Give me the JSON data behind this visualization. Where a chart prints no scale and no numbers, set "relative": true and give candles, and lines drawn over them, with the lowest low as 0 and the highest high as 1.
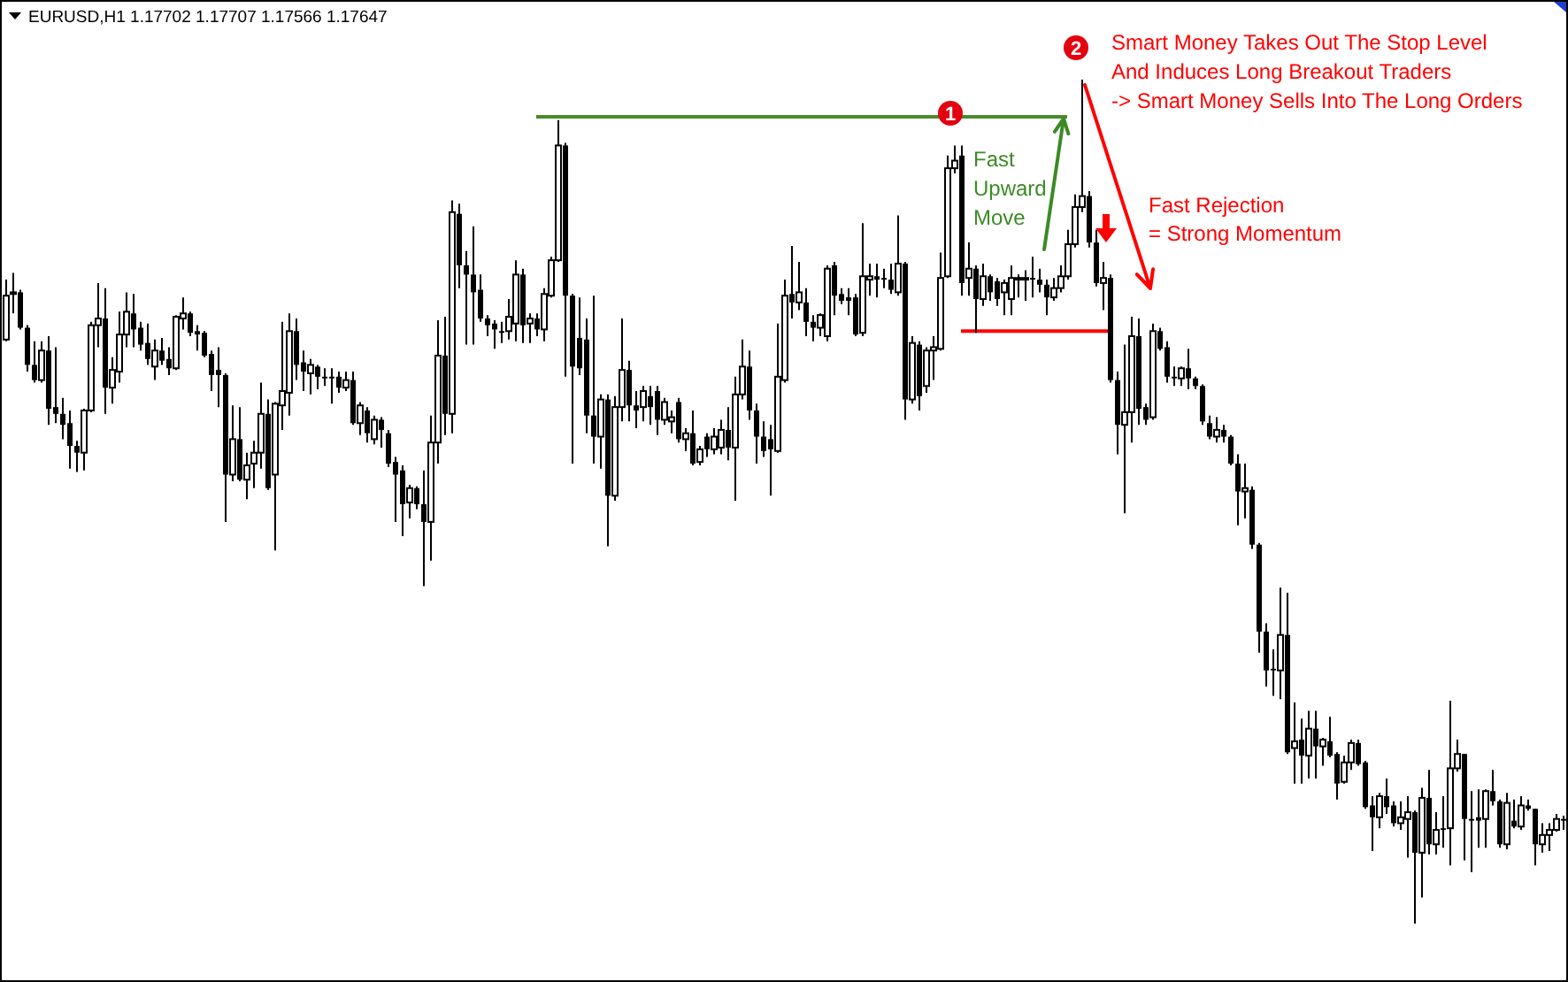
{
  "chart_data": {
    "type": "candlestick",
    "relative": true,
    "title": "EURUSD,H1 1.17702 1.17707 1.17566 1.17647",
    "categories": [
      null,
      null,
      null,
      null,
      null,
      null,
      null,
      null,
      null,
      null,
      null,
      null,
      null,
      null,
      null,
      null,
      null,
      null,
      null,
      null,
      null,
      null,
      null,
      null,
      null,
      null,
      null,
      null,
      null,
      null,
      null,
      null,
      null,
      null,
      null,
      null,
      null,
      null,
      null,
      null,
      null,
      null,
      null,
      null,
      null,
      null,
      null,
      null,
      null,
      null,
      null,
      null,
      null,
      null,
      null,
      null,
      null,
      null,
      null,
      null,
      null,
      null,
      null,
      null,
      null,
      null,
      null,
      null,
      null,
      null,
      null,
      null,
      null,
      null,
      null,
      null,
      null,
      null,
      null,
      null,
      null,
      null,
      null,
      null,
      null,
      null,
      null,
      null,
      null,
      null,
      null,
      null,
      null,
      null,
      null,
      null,
      null,
      null,
      null,
      null,
      null,
      null,
      null,
      null,
      null,
      null,
      null,
      null,
      null,
      null,
      null,
      null,
      null,
      null,
      null,
      null,
      null,
      null,
      null,
      null,
      null,
      null,
      null,
      null,
      null,
      null,
      null,
      null,
      null,
      null,
      null,
      null,
      null,
      null,
      null,
      null,
      null,
      null,
      null,
      null,
      null,
      null,
      null,
      null,
      null,
      null,
      null,
      null,
      null,
      null,
      null,
      null,
      null,
      null,
      null,
      null,
      null,
      null,
      null,
      null,
      null,
      null,
      null,
      null,
      null,
      null,
      null,
      null,
      null,
      null,
      null,
      null,
      null,
      null,
      null,
      null,
      null,
      null,
      null,
      null,
      null,
      null,
      null,
      null,
      null,
      null,
      null,
      null,
      null,
      null,
      null,
      null,
      null,
      null,
      null,
      null,
      null,
      null,
      null,
      null,
      null,
      null,
      null,
      null,
      null,
      null,
      null,
      null,
      null,
      null,
      null,
      null,
      null,
      null,
      null,
      null,
      null,
      null,
      null,
      null,
      null
    ],
    "ohlc": [
      [
        0.692,
        0.763,
        0.69,
        0.744
      ],
      [
        0.746,
        0.771,
        0.723,
        0.748
      ],
      [
        0.748,
        0.751,
        0.704,
        0.706
      ],
      [
        0.706,
        0.709,
        0.654,
        0.662
      ],
      [
        0.662,
        0.69,
        0.641,
        0.644
      ],
      [
        0.644,
        0.69,
        0.641,
        0.679
      ],
      [
        0.679,
        0.696,
        0.591,
        0.61
      ],
      [
        0.612,
        0.683,
        0.593,
        0.604
      ],
      [
        0.604,
        0.623,
        0.574,
        0.591
      ],
      [
        0.593,
        0.608,
        0.539,
        0.566
      ],
      [
        0.566,
        0.572,
        0.535,
        0.558
      ],
      [
        0.558,
        0.61,
        0.537,
        0.608
      ],
      [
        0.608,
        0.713,
        0.606,
        0.709
      ],
      [
        0.709,
        0.759,
        0.683,
        0.717
      ],
      [
        0.717,
        0.753,
        0.604,
        0.635
      ],
      [
        0.635,
        0.671,
        0.616,
        0.656
      ],
      [
        0.654,
        0.725,
        0.641,
        0.698
      ],
      [
        0.698,
        0.748,
        0.683,
        0.725
      ],
      [
        0.723,
        0.746,
        0.683,
        0.704
      ],
      [
        0.706,
        0.713,
        0.679,
        0.686
      ],
      [
        0.688,
        0.711,
        0.662,
        0.669
      ],
      [
        0.66,
        0.692,
        0.644,
        0.679
      ],
      [
        0.679,
        0.694,
        0.662,
        0.667
      ],
      [
        0.669,
        0.683,
        0.65,
        0.658
      ],
      [
        0.658,
        0.721,
        0.656,
        0.719
      ],
      [
        0.717,
        0.742,
        0.704,
        0.723
      ],
      [
        0.723,
        0.725,
        0.696,
        0.7
      ],
      [
        0.702,
        0.709,
        0.679,
        0.698
      ],
      [
        0.7,
        0.702,
        0.671,
        0.673
      ],
      [
        0.675,
        0.679,
        0.631,
        0.65
      ],
      [
        0.656,
        0.683,
        0.612,
        0.65
      ],
      [
        0.65,
        0.652,
        0.476,
        0.532
      ],
      [
        0.532,
        0.614,
        0.524,
        0.574
      ],
      [
        0.574,
        0.612,
        0.524,
        0.526
      ],
      [
        0.526,
        0.558,
        0.503,
        0.543
      ],
      [
        0.545,
        0.572,
        0.516,
        0.558
      ],
      [
        0.558,
        0.641,
        0.539,
        0.604
      ],
      [
        0.604,
        0.621,
        0.514,
        0.516
      ],
      [
        0.532,
        0.618,
        0.442,
        0.616
      ],
      [
        0.614,
        0.713,
        0.585,
        0.631
      ],
      [
        0.629,
        0.723,
        0.602,
        0.702
      ],
      [
        0.702,
        0.717,
        0.644,
        0.662
      ],
      [
        0.665,
        0.679,
        0.631,
        0.654
      ],
      [
        0.652,
        0.669,
        0.627,
        0.662
      ],
      [
        0.66,
        0.662,
        0.633,
        0.648
      ],
      [
        0.648,
        0.658,
        0.637,
        0.646
      ],
      [
        0.648,
        0.658,
        0.616,
        0.646
      ],
      [
        0.648,
        0.654,
        0.629,
        0.635
      ],
      [
        0.635,
        0.654,
        0.631,
        0.644
      ],
      [
        0.644,
        0.654,
        0.591,
        0.593
      ],
      [
        0.593,
        0.618,
        0.579,
        0.614
      ],
      [
        0.608,
        0.612,
        0.57,
        0.581
      ],
      [
        0.574,
        0.602,
        0.568,
        0.597
      ],
      [
        0.597,
        0.6,
        0.564,
        0.585
      ],
      [
        0.581,
        0.585,
        0.541,
        0.545
      ],
      [
        0.547,
        0.553,
        0.476,
        0.532
      ],
      [
        0.537,
        0.543,
        0.459,
        0.497
      ],
      [
        0.499,
        0.52,
        0.48,
        0.516
      ],
      [
        0.516,
        0.518,
        0.491,
        0.497
      ],
      [
        0.497,
        0.537,
        0.4,
        0.476
      ],
      [
        0.476,
        0.602,
        0.43,
        0.57
      ],
      [
        0.57,
        0.715,
        0.545,
        0.673
      ],
      [
        0.673,
        0.719,
        0.579,
        0.604
      ],
      [
        0.604,
        0.857,
        0.581,
        0.843
      ],
      [
        0.841,
        0.853,
        0.753,
        0.78
      ],
      [
        0.78,
        0.797,
        0.686,
        0.769
      ],
      [
        0.769,
        0.826,
        0.686,
        0.748
      ],
      [
        0.751,
        0.769,
        0.713,
        0.717
      ],
      [
        0.717,
        0.721,
        0.696,
        0.709
      ],
      [
        0.711,
        0.715,
        0.681,
        0.704
      ],
      [
        0.702,
        0.713,
        0.688,
        0.7
      ],
      [
        0.702,
        0.74,
        0.692,
        0.719
      ],
      [
        0.711,
        0.786,
        0.69,
        0.769
      ],
      [
        0.769,
        0.776,
        0.688,
        0.709
      ],
      [
        0.711,
        0.723,
        0.688,
        0.717
      ],
      [
        0.717,
        0.723,
        0.696,
        0.704
      ],
      [
        0.704,
        0.753,
        0.69,
        0.746
      ],
      [
        0.744,
        0.79,
        0.742,
        0.786
      ],
      [
        0.786,
        0.952,
        0.784,
        0.922
      ],
      [
        0.922,
        0.925,
        0.648,
        0.744
      ],
      [
        0.744,
        0.746,
        0.545,
        0.66
      ],
      [
        0.694,
        0.742,
        0.65,
        0.658
      ],
      [
        0.692,
        0.717,
        0.581,
        0.602
      ],
      [
        0.602,
        0.744,
        0.545,
        0.577
      ],
      [
        0.577,
        0.627,
        0.539,
        0.621
      ],
      [
        0.621,
        0.627,
        0.447,
        0.507
      ],
      [
        0.507,
        0.625,
        0.501,
        0.612
      ],
      [
        0.612,
        0.717,
        0.595,
        0.656
      ],
      [
        0.656,
        0.667,
        0.595,
        0.614
      ],
      [
        0.614,
        0.631,
        0.587,
        0.608
      ],
      [
        0.612,
        0.637,
        0.595,
        0.631
      ],
      [
        0.625,
        0.637,
        0.591,
        0.612
      ],
      [
        0.631,
        0.637,
        0.579,
        0.597
      ],
      [
        0.597,
        0.623,
        0.591,
        0.618
      ],
      [
        0.595,
        0.608,
        0.581,
        0.6
      ],
      [
        0.618,
        0.623,
        0.57,
        0.574
      ],
      [
        0.574,
        0.587,
        0.56,
        0.581
      ],
      [
        0.581,
        0.608,
        0.543,
        0.545
      ],
      [
        0.547,
        0.566,
        0.543,
        0.562
      ],
      [
        0.577,
        0.581,
        0.553,
        0.562
      ],
      [
        0.562,
        0.587,
        0.556,
        0.577
      ],
      [
        0.564,
        0.597,
        0.556,
        0.585
      ],
      [
        0.585,
        0.612,
        0.549,
        0.564
      ],
      [
        0.564,
        0.648,
        0.501,
        0.627
      ],
      [
        0.627,
        0.692,
        0.621,
        0.66
      ],
      [
        0.66,
        0.679,
        0.597,
        0.608
      ],
      [
        0.608,
        0.616,
        0.545,
        0.577
      ],
      [
        0.577,
        0.595,
        0.553,
        0.56
      ],
      [
        0.574,
        0.591,
        0.507,
        0.562
      ],
      [
        0.56,
        0.711,
        0.558,
        0.648
      ],
      [
        0.644,
        0.763,
        0.641,
        0.744
      ],
      [
        0.746,
        0.803,
        0.717,
        0.736
      ],
      [
        0.736,
        0.784,
        0.727,
        0.748
      ],
      [
        0.736,
        0.753,
        0.696,
        0.713
      ],
      [
        0.713,
        0.721,
        0.69,
        0.706
      ],
      [
        0.706,
        0.723,
        0.696,
        0.721
      ],
      [
        0.696,
        0.78,
        0.69,
        0.776
      ],
      [
        0.78,
        0.784,
        0.721,
        0.744
      ],
      [
        0.746,
        0.753,
        0.734,
        0.738
      ],
      [
        0.742,
        0.753,
        0.721,
        0.738
      ],
      [
        0.742,
        0.746,
        0.696,
        0.698
      ],
      [
        0.7,
        0.83,
        0.696,
        0.767
      ],
      [
        0.763,
        0.782,
        0.744,
        0.767
      ],
      [
        0.767,
        0.782,
        0.742,
        0.763
      ],
      [
        0.765,
        0.776,
        0.753,
        0.763
      ],
      [
        0.763,
        0.782,
        0.746,
        0.751
      ],
      [
        0.748,
        0.839,
        0.744,
        0.782
      ],
      [
        0.782,
        0.784,
        0.597,
        0.621
      ],
      [
        0.621,
        0.696,
        0.616,
        0.688
      ],
      [
        0.686,
        0.69,
        0.608,
        0.625
      ],
      [
        0.637,
        0.683,
        0.629,
        0.679
      ],
      [
        0.679,
        0.696,
        0.644,
        0.683
      ],
      [
        0.681,
        0.795,
        0.679,
        0.765
      ],
      [
        0.767,
        0.91,
        0.765,
        0.895
      ],
      [
        0.895,
        0.922,
        0.889,
        0.904
      ],
      [
        0.91,
        0.922,
        0.744,
        0.759
      ],
      [
        0.765,
        0.807,
        0.744,
        0.776
      ],
      [
        0.776,
        0.78,
        0.7,
        0.74
      ],
      [
        0.74,
        0.782,
        0.732,
        0.767
      ],
      [
        0.767,
        0.769,
        0.738,
        0.748
      ],
      [
        0.761,
        0.765,
        0.732,
        0.74
      ],
      [
        0.748,
        0.763,
        0.721,
        0.759
      ],
      [
        0.74,
        0.78,
        0.721,
        0.765
      ],
      [
        0.763,
        0.769,
        0.742,
        0.765
      ],
      [
        0.763,
        0.774,
        0.738,
        0.765
      ],
      [
        0.765,
        0.79,
        0.742,
        0.763
      ],
      [
        0.763,
        0.776,
        0.748,
        0.757
      ],
      [
        0.757,
        0.763,
        0.721,
        0.742
      ],
      [
        0.742,
        0.765,
        0.738,
        0.753
      ],
      [
        0.753,
        0.78,
        0.748,
        0.767
      ],
      [
        0.767,
        0.822,
        0.763,
        0.805
      ],
      [
        0.805,
        0.864,
        0.801,
        0.849
      ],
      [
        0.849,
        1,
        0.843,
        0.862
      ],
      [
        0.862,
        0.868,
        0.801,
        0.807
      ],
      [
        0.807,
        0.822,
        0.755,
        0.759
      ],
      [
        0.759,
        0.784,
        0.727,
        0.765
      ],
      [
        0.765,
        0.769,
        0.641,
        0.644
      ],
      [
        0.644,
        0.654,
        0.556,
        0.591
      ],
      [
        0.591,
        0.686,
        0.486,
        0.606
      ],
      [
        0.606,
        0.719,
        0.57,
        0.696
      ],
      [
        0.696,
        0.717,
        0.591,
        0.61
      ],
      [
        0.612,
        0.616,
        0.591,
        0.597
      ],
      [
        0.6,
        0.711,
        0.597,
        0.702
      ],
      [
        0.702,
        0.706,
        0.679,
        0.681
      ],
      [
        0.683,
        0.69,
        0.641,
        0.648
      ],
      [
        0.648,
        0.66,
        0.637,
        0.646
      ],
      [
        0.646,
        0.66,
        0.637,
        0.658
      ],
      [
        0.658,
        0.681,
        0.633,
        0.646
      ],
      [
        0.646,
        0.648,
        0.633,
        0.637
      ],
      [
        0.637,
        0.639,
        0.591,
        0.595
      ],
      [
        0.593,
        0.602,
        0.574,
        0.577
      ],
      [
        0.577,
        0.6,
        0.57,
        0.585
      ],
      [
        0.585,
        0.591,
        0.57,
        0.577
      ],
      [
        0.577,
        0.579,
        0.543,
        0.545
      ],
      [
        0.545,
        0.556,
        0.472,
        0.512
      ],
      [
        0.512,
        0.545,
        0.48,
        0.516
      ],
      [
        0.514,
        0.518,
        0.444,
        0.449
      ],
      [
        0.449,
        0.451,
        0.321,
        0.346
      ],
      [
        0.346,
        0.356,
        0.281,
        0.3
      ],
      [
        0.302,
        0.325,
        0.27,
        0.3
      ],
      [
        0.3,
        0.398,
        0.266,
        0.342
      ],
      [
        0.342,
        0.392,
        0.201,
        0.203
      ],
      [
        0.208,
        0.262,
        0.166,
        0.216
      ],
      [
        0.218,
        0.243,
        0.166,
        0.199
      ],
      [
        0.199,
        0.252,
        0.172,
        0.231
      ],
      [
        0.231,
        0.252,
        0.172,
        0.21
      ],
      [
        0.21,
        0.22,
        0.187,
        0.218
      ],
      [
        0.216,
        0.245,
        0.197,
        0.199
      ],
      [
        0.201,
        0.203,
        0.147,
        0.166
      ],
      [
        0.168,
        0.199,
        0.166,
        0.191
      ],
      [
        0.191,
        0.218,
        0.182,
        0.214
      ],
      [
        0.214,
        0.218,
        0.187,
        0.189
      ],
      [
        0.191,
        0.193,
        0.136,
        0.138
      ],
      [
        0.14,
        0.151,
        0.086,
        0.126
      ],
      [
        0.126,
        0.155,
        0.113,
        0.151
      ],
      [
        0.151,
        0.172,
        0.13,
        0.138
      ],
      [
        0.14,
        0.145,
        0.115,
        0.119
      ],
      [
        0.119,
        0.145,
        0.111,
        0.126
      ],
      [
        0.124,
        0.151,
        0.078,
        0.132
      ],
      [
        0.132,
        0.134,
        0,
        0.084
      ],
      [
        0.084,
        0.161,
        0.031,
        0.149
      ],
      [
        0.149,
        0.182,
        0.082,
        0.094
      ],
      [
        0.094,
        0.132,
        0.082,
        0.111
      ],
      [
        0.113,
        0.151,
        0.09,
        0.111
      ],
      [
        0.113,
        0.264,
        0.069,
        0.184
      ],
      [
        0.184,
        0.218,
        0.18,
        0.201
      ],
      [
        0.201,
        0.201,
        0.075,
        0.124
      ],
      [
        0.124,
        0.157,
        0.061,
        0.122
      ],
      [
        0.126,
        0.159,
        0.09,
        0.122
      ],
      [
        0.124,
        0.159,
        0.09,
        0.157
      ],
      [
        0.157,
        0.182,
        0.14,
        0.145
      ],
      [
        0.145,
        0.147,
        0.09,
        0.094
      ],
      [
        0.094,
        0.155,
        0.088,
        0.143
      ],
      [
        0.122,
        0.147,
        0.113,
        0.115
      ],
      [
        0.115,
        0.151,
        0.111,
        0.14
      ],
      [
        0.14,
        0.147,
        0.134,
        0.136
      ],
      [
        0.136,
        0.136,
        0.069,
        0.094
      ],
      [
        0.094,
        0.119,
        0.084,
        0.105
      ],
      [
        0.105,
        0.119,
        0.086,
        0.111
      ],
      [
        0.111,
        0.13,
        0.109,
        0.124
      ],
      [
        0.124,
        0.128,
        0.111,
        0.122
      ]
    ],
    "series": [
      {
        "type": "line",
        "color": "#4a8b2c",
        "values": [
          null,
          null,
          null,
          null,
          null,
          null,
          null,
          null,
          null,
          null,
          null,
          null,
          null,
          null,
          null,
          null,
          null,
          null,
          null,
          null,
          null,
          null,
          null,
          null,
          null,
          null,
          null,
          null,
          null,
          null,
          null,
          null,
          null,
          null,
          null,
          null,
          null,
          null,
          null,
          null,
          null,
          null,
          null,
          null,
          null,
          null,
          null,
          null,
          null,
          null,
          null,
          null,
          null,
          null,
          null,
          null,
          null,
          null,
          null,
          null,
          null,
          null,
          null,
          null,
          null,
          null,
          null,
          null,
          null,
          null,
          null,
          null,
          null,
          null,
          null,
          0.956,
          0.956,
          0.956,
          0.956,
          0.956,
          0.956,
          0.956,
          0.956,
          0.956,
          0.956,
          0.956,
          0.956,
          0.956,
          0.956,
          0.956,
          0.956,
          0.956,
          0.956,
          0.956,
          0.956,
          0.956,
          0.956,
          0.956,
          0.956,
          0.956,
          0.956,
          0.956,
          0.956,
          0.956,
          0.956,
          0.956,
          0.956,
          0.956,
          0.956,
          0.956,
          0.956,
          0.956,
          0.956,
          0.956,
          0.956,
          0.956,
          0.956,
          0.956,
          0.956,
          0.956,
          0.956,
          0.956,
          0.956,
          0.956,
          0.956,
          0.956,
          0.956,
          0.956,
          0.956,
          0.956,
          0.956,
          0.956,
          0.956,
          null,
          null,
          0.956,
          0.956,
          0.956,
          0.956,
          0.956,
          0.956,
          0.956,
          0.956,
          0.956,
          0.956,
          0.956,
          0.956,
          0.956,
          0.956,
          0.956,
          0.956,
          null,
          null,
          null,
          null,
          null,
          null,
          null,
          null,
          null,
          null,
          null,
          null,
          null,
          null,
          null,
          null,
          null,
          null,
          null,
          null,
          null,
          null,
          null,
          null,
          null,
          null,
          null,
          null,
          null,
          null,
          null,
          null,
          null,
          null,
          null,
          null,
          null,
          null,
          null,
          null,
          null,
          null,
          null,
          null,
          null,
          null,
          null,
          null,
          null,
          null,
          null,
          null,
          null,
          null,
          null,
          null,
          null,
          null,
          null,
          null,
          null,
          null,
          null,
          null,
          null,
          null,
          null,
          null,
          null,
          null
        ]
      },
      {
        "type": "line",
        "color": "#ff0000",
        "values": [
          null,
          null,
          null,
          null,
          null,
          null,
          null,
          null,
          null,
          null,
          null,
          null,
          null,
          null,
          null,
          null,
          null,
          null,
          null,
          null,
          null,
          null,
          null,
          null,
          null,
          null,
          null,
          null,
          null,
          null,
          null,
          null,
          null,
          null,
          null,
          null,
          null,
          null,
          null,
          null,
          null,
          null,
          null,
          null,
          null,
          null,
          null,
          null,
          null,
          null,
          null,
          null,
          null,
          null,
          null,
          null,
          null,
          null,
          null,
          null,
          null,
          null,
          null,
          null,
          null,
          null,
          null,
          null,
          null,
          null,
          null,
          null,
          null,
          null,
          null,
          null,
          null,
          null,
          null,
          null,
          null,
          null,
          null,
          null,
          null,
          null,
          null,
          null,
          null,
          null,
          null,
          null,
          null,
          null,
          null,
          null,
          null,
          null,
          null,
          null,
          null,
          null,
          null,
          null,
          null,
          null,
          null,
          null,
          null,
          null,
          null,
          null,
          null,
          null,
          null,
          null,
          null,
          null,
          null,
          null,
          null,
          null,
          null,
          null,
          null,
          null,
          null,
          null,
          null,
          null,
          null,
          null,
          null,
          null,
          null,
          0.702,
          0.702,
          0.702,
          0.702,
          0.702,
          0.702,
          0.702,
          0.702,
          0.702,
          0.702,
          0.702,
          0.702,
          0.702,
          0.702,
          0.702,
          0.702,
          0.702,
          0.702,
          0.702,
          0.702,
          0.702,
          0.702,
          null,
          null,
          null,
          null,
          null,
          null,
          null,
          null,
          null,
          null,
          null,
          null,
          null,
          null,
          null,
          null,
          null,
          null,
          null,
          null,
          null,
          null,
          null,
          null,
          null,
          null,
          null,
          null,
          null,
          null,
          null,
          null,
          null,
          null,
          null,
          null,
          null,
          null,
          null,
          null,
          null,
          null,
          null,
          null,
          null,
          null,
          null,
          null,
          null,
          null,
          null,
          null,
          null,
          null,
          null,
          null,
          null,
          null,
          null,
          null,
          null,
          null,
          null,
          null
        ]
      }
    ],
    "annotations": [
      "1",
      "2",
      "Fast\nUpward\nMove",
      "Smart Money Takes Out The Stop Level\nAnd Induces Long Breakout Traders\n-> Smart Money Sells Into The Long Orders",
      "Fast Rejection\n= Strong Momentum"
    ]
  }
}
